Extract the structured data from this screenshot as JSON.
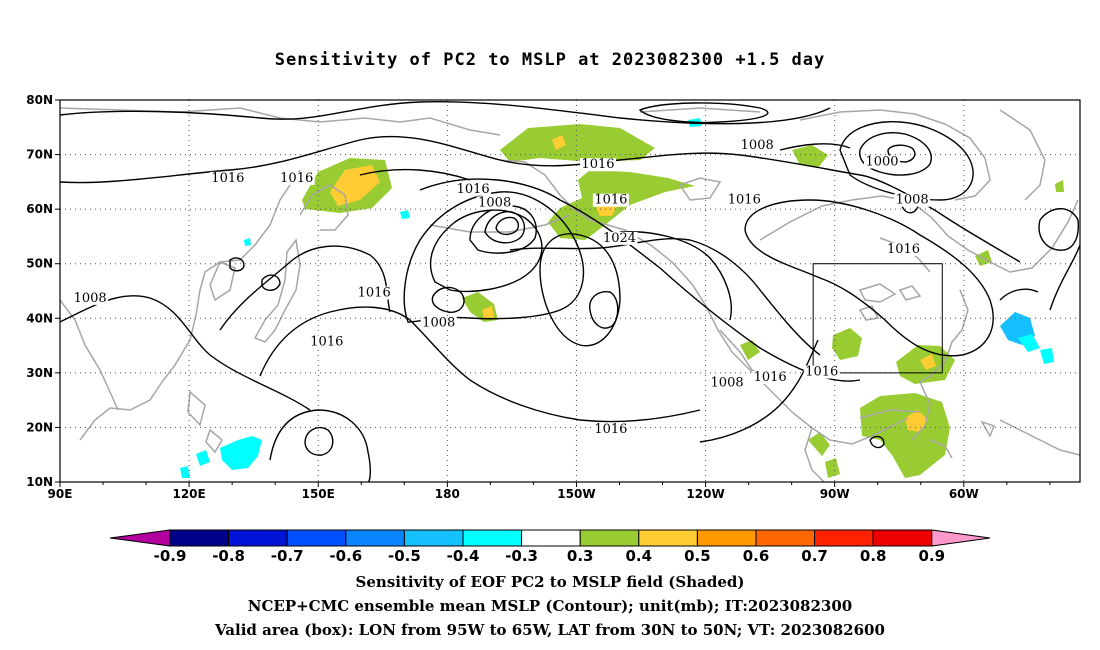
{
  "title": "Sensitivity of PC2 to MSLP at 2023082300 +1.5 day",
  "captions": [
    "Sensitivity of EOF PC2 to MSLP field (Shaded)",
    "NCEP+CMC ensemble mean MSLP (Contour); unit(mb); IT:2023082300",
    "Valid area (box): LON from 95W to 65W, LAT from 30N to 50N; VT: 2023082600"
  ],
  "map": {
    "lat_labels": [
      "80N",
      "70N",
      "60N",
      "50N",
      "40N",
      "30N",
      "20N",
      "10N"
    ],
    "lon_labels": [
      "90E",
      "120E",
      "150E",
      "180",
      "150W",
      "120W",
      "90W",
      "60W"
    ],
    "contour_labels": [
      {
        "text": "1016",
        "lon": 129,
        "lat": 65
      },
      {
        "text": "1016",
        "lon": 145,
        "lat": 65
      },
      {
        "text": "1016",
        "lon": 186,
        "lat": 63
      },
      {
        "text": "1008",
        "lon": 191,
        "lat": 60.5
      },
      {
        "text": "1016",
        "lon": 215,
        "lat": 67.5
      },
      {
        "text": "1016",
        "lon": 218,
        "lat": 61
      },
      {
        "text": "1024",
        "lon": 220,
        "lat": 54
      },
      {
        "text": "1008",
        "lon": 252,
        "lat": 71
      },
      {
        "text": "1016",
        "lon": 249,
        "lat": 61
      },
      {
        "text": "1000",
        "lon": 281,
        "lat": 68
      },
      {
        "text": "1008",
        "lon": 288,
        "lat": 61
      },
      {
        "text": "1016",
        "lon": 286,
        "lat": 52
      },
      {
        "text": "1008",
        "lon": 97,
        "lat": 43
      },
      {
        "text": "1016",
        "lon": 163,
        "lat": 44
      },
      {
        "text": "1008",
        "lon": 178,
        "lat": 38.5
      },
      {
        "text": "1016",
        "lon": 152,
        "lat": 35
      },
      {
        "text": "1008",
        "lon": 245,
        "lat": 27.5
      },
      {
        "text": "1016",
        "lon": 255,
        "lat": 28.5
      },
      {
        "text": "1016",
        "lon": 267,
        "lat": 29.5
      },
      {
        "text": "1016",
        "lon": 218,
        "lat": 19
      }
    ],
    "valid_box": {
      "lon_min": 265,
      "lon_max": 295,
      "lat_min": 30,
      "lat_max": 50
    }
  },
  "colorbar": {
    "labels": [
      "-0.9",
      "-0.8",
      "-0.7",
      "-0.6",
      "-0.5",
      "-0.4",
      "-0.3",
      "0.3",
      "0.4",
      "0.5",
      "0.6",
      "0.7",
      "0.8",
      "0.9"
    ],
    "colors": [
      "#b4009e",
      "#00008b",
      "#0014d8",
      "#0050ff",
      "#0a84ff",
      "#14c0ff",
      "#00ffff",
      "#ffffff",
      "#99cc33",
      "#ffcc33",
      "#ff9900",
      "#ff6600",
      "#ff2200",
      "#ee0000",
      "#ff99cc"
    ]
  },
  "colors": {
    "coast": "#a6a6a6",
    "contour": "#000000",
    "grid": "#555555"
  }
}
